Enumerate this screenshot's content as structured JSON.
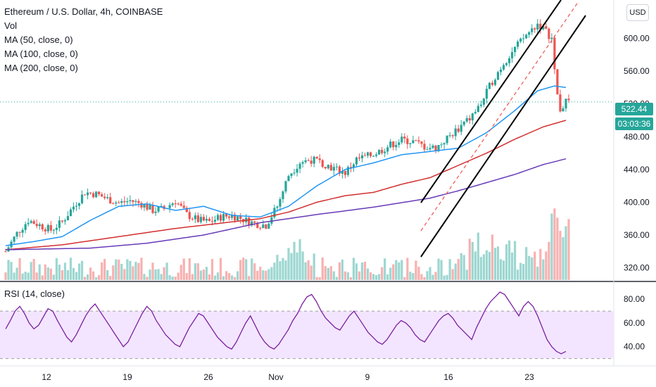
{
  "header": {
    "title": "Ethereum / U.S. Dollar, 4h, COINBASE",
    "indicators": [
      "Vol",
      "MA (50, close, 0)",
      "MA (100, close, 0)",
      "MA (200, close, 0)"
    ]
  },
  "currency_button": "USD",
  "rsi_title": "RSI (14, close)",
  "last_price": "522.44",
  "countdown": "03:03:36",
  "colors": {
    "up": "#26a69a",
    "down": "#ef5350",
    "ma50": "#2196f3",
    "ma100": "#d32f2f",
    "ma200": "#673ab7",
    "rsi": "#7b1fa2",
    "rsi_band": "#f3e5ff",
    "channel": "#000000",
    "dashed_mid": "#ef5350",
    "price_line": "#26a69a"
  },
  "chart_data": [
    {
      "type": "candlestick",
      "y_ticks": [
        320,
        360,
        400,
        440,
        480,
        520,
        560,
        600
      ],
      "ylim": [
        305,
        640
      ],
      "x_ticks": [
        "12",
        "19",
        "26",
        "Nov",
        "9",
        "16",
        "23"
      ],
      "last_price": 522.44,
      "price_path": [
        [
          0,
          340
        ],
        [
          4,
          362
        ],
        [
          8,
          378
        ],
        [
          12,
          372
        ],
        [
          16,
          366
        ],
        [
          20,
          376
        ],
        [
          24,
          395
        ],
        [
          28,
          412
        ],
        [
          32,
          410
        ],
        [
          36,
          404
        ],
        [
          40,
          399
        ],
        [
          44,
          402
        ],
        [
          48,
          398
        ],
        [
          52,
          390
        ],
        [
          56,
          392
        ],
        [
          60,
          402
        ],
        [
          64,
          385
        ],
        [
          68,
          378
        ],
        [
          72,
          376
        ],
        [
          76,
          382
        ],
        [
          80,
          384
        ],
        [
          84,
          379
        ],
        [
          88,
          374
        ],
        [
          92,
          372
        ],
        [
          96,
          395
        ],
        [
          100,
          433
        ],
        [
          104,
          449
        ],
        [
          108,
          452
        ],
        [
          112,
          448
        ],
        [
          116,
          441
        ],
        [
          120,
          436
        ],
        [
          124,
          452
        ],
        [
          128,
          456
        ],
        [
          132,
          462
        ],
        [
          136,
          470
        ],
        [
          140,
          476
        ],
        [
          144,
          474
        ],
        [
          148,
          468
        ],
        [
          152,
          466
        ],
        [
          156,
          478
        ],
        [
          160,
          490
        ],
        [
          164,
          502
        ],
        [
          168,
          520
        ],
        [
          172,
          548
        ],
        [
          176,
          570
        ],
        [
          180,
          588
        ],
        [
          184,
          604
        ],
        [
          188,
          618
        ],
        [
          190,
          612
        ],
        [
          193,
          600
        ],
        [
          194,
          565
        ],
        [
          195,
          530
        ],
        [
          196,
          514
        ],
        [
          197,
          518
        ],
        [
          198,
          522.44
        ]
      ],
      "moving_averages": [
        {
          "name": "MA (50, close, 0)",
          "points": [
            [
              0,
              347
            ],
            [
              10,
              352
            ],
            [
              20,
              358
            ],
            [
              30,
              378
            ],
            [
              40,
              395
            ],
            [
              50,
              398
            ],
            [
              60,
              390
            ],
            [
              70,
              395
            ],
            [
              80,
              384
            ],
            [
              90,
              382
            ],
            [
              100,
              395
            ],
            [
              110,
              420
            ],
            [
              120,
              440
            ],
            [
              130,
              448
            ],
            [
              140,
              458
            ],
            [
              150,
              462
            ],
            [
              160,
              466
            ],
            [
              170,
              485
            ],
            [
              180,
              512
            ],
            [
              188,
              536
            ],
            [
              194,
              542
            ],
            [
              198,
              540
            ]
          ]
        },
        {
          "name": "MA (100, close, 0)",
          "points": [
            [
              0,
              342
            ],
            [
              20,
              348
            ],
            [
              40,
              358
            ],
            [
              60,
              368
            ],
            [
              80,
              376
            ],
            [
              90,
              380
            ],
            [
              100,
              388
            ],
            [
              110,
              400
            ],
            [
              120,
              408
            ],
            [
              130,
              412
            ],
            [
              140,
              422
            ],
            [
              150,
              430
            ],
            [
              160,
              445
            ],
            [
              170,
              460
            ],
            [
              180,
              477
            ],
            [
              190,
              492
            ],
            [
              198,
              500
            ]
          ]
        },
        {
          "name": "MA (200, close, 0)",
          "points": [
            [
              0,
              342
            ],
            [
              30,
              344
            ],
            [
              50,
              350
            ],
            [
              70,
              360
            ],
            [
              90,
              375
            ],
            [
              110,
              385
            ],
            [
              130,
              394
            ],
            [
              150,
              405
            ],
            [
              160,
              414
            ],
            [
              170,
              424
            ],
            [
              180,
              434
            ],
            [
              190,
              446
            ],
            [
              198,
              453
            ]
          ]
        }
      ]
    },
    {
      "type": "line",
      "name": "RSI (14, close)",
      "ylim": [
        25,
        92
      ],
      "y_ticks": [
        40,
        60,
        80
      ],
      "bands": [
        30,
        70
      ],
      "values": [
        55,
        62,
        70,
        74,
        68,
        60,
        55,
        58,
        65,
        72,
        70,
        62,
        55,
        48,
        44,
        50,
        58,
        66,
        72,
        76,
        70,
        64,
        58,
        52,
        46,
        40,
        44,
        52,
        60,
        68,
        74,
        70,
        62,
        56,
        50,
        46,
        42,
        40,
        48,
        56,
        62,
        68,
        66,
        60,
        54,
        48,
        44,
        40,
        38,
        44,
        52,
        60,
        66,
        58,
        50,
        44,
        40,
        38,
        42,
        48,
        54,
        62,
        68,
        76,
        82,
        84,
        78,
        70,
        64,
        60,
        56,
        54,
        60,
        66,
        70,
        64,
        58,
        52,
        48,
        44,
        42,
        46,
        52,
        58,
        62,
        60,
        56,
        50,
        46,
        44,
        50,
        56,
        62,
        66,
        68,
        64,
        58,
        54,
        50,
        46,
        56,
        64,
        72,
        78,
        82,
        86,
        84,
        78,
        72,
        66,
        74,
        78,
        74,
        66,
        56,
        46,
        40,
        36,
        34,
        36
      ]
    }
  ]
}
